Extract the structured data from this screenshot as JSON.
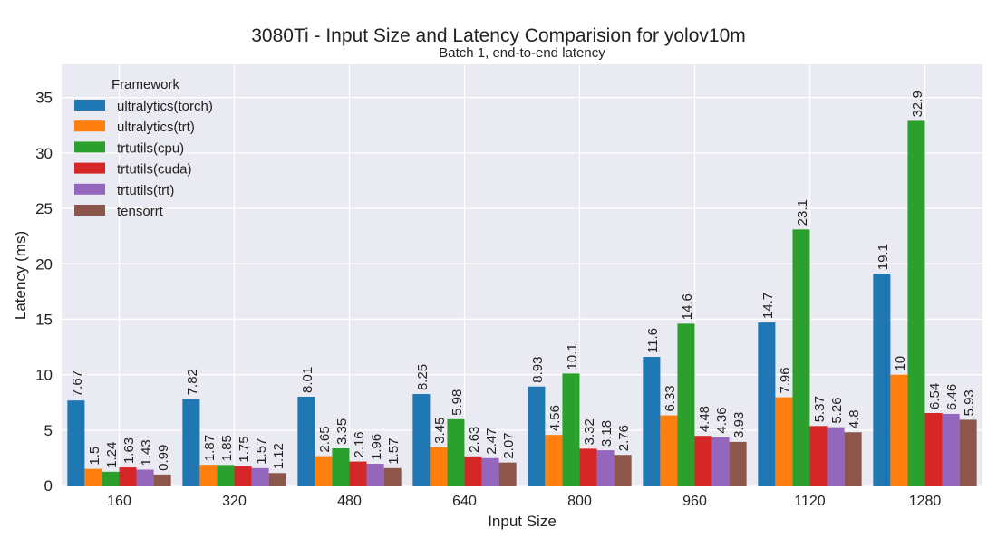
{
  "chart_data": {
    "type": "bar",
    "title": "3080Ti - Input Size and Latency Comparision for yolov10m",
    "subtitle": "Batch 1, end-to-end latency",
    "xlabel": "Input Size",
    "ylabel": "Latency (ms)",
    "ylim": [
      0,
      38
    ],
    "yticks": [
      0,
      5,
      10,
      15,
      20,
      25,
      30,
      35
    ],
    "grid": true,
    "legend": {
      "title": "Framework",
      "placement": "top-left"
    },
    "categories": [
      "160",
      "320",
      "480",
      "640",
      "800",
      "960",
      "1120",
      "1280"
    ],
    "series": [
      {
        "name": "ultralytics(torch)",
        "color": "#1f77b4",
        "values": [
          7.67,
          7.82,
          8.01,
          8.25,
          8.93,
          11.6,
          14.7,
          19.1
        ]
      },
      {
        "name": "ultralytics(trt)",
        "color": "#ff7f0e",
        "values": [
          1.5,
          1.87,
          2.65,
          3.45,
          4.56,
          6.33,
          7.96,
          10
        ]
      },
      {
        "name": "trtutils(cpu)",
        "color": "#2ca02c",
        "values": [
          1.24,
          1.85,
          3.35,
          5.98,
          10.1,
          14.6,
          23.1,
          32.9
        ]
      },
      {
        "name": "trtutils(cuda)",
        "color": "#d62728",
        "values": [
          1.63,
          1.75,
          2.16,
          2.63,
          3.32,
          4.48,
          5.37,
          6.54
        ]
      },
      {
        "name": "trtutils(trt)",
        "color": "#9467bd",
        "values": [
          1.43,
          1.57,
          1.96,
          2.47,
          3.18,
          4.36,
          5.26,
          6.46
        ]
      },
      {
        "name": "tensorrt",
        "color": "#8c564b",
        "values": [
          0.99,
          1.12,
          1.57,
          2.07,
          2.76,
          3.93,
          4.8,
          5.93
        ]
      }
    ],
    "colors": {
      "plot_background": "#eaeaf2",
      "grid": "#ffffff"
    }
  }
}
